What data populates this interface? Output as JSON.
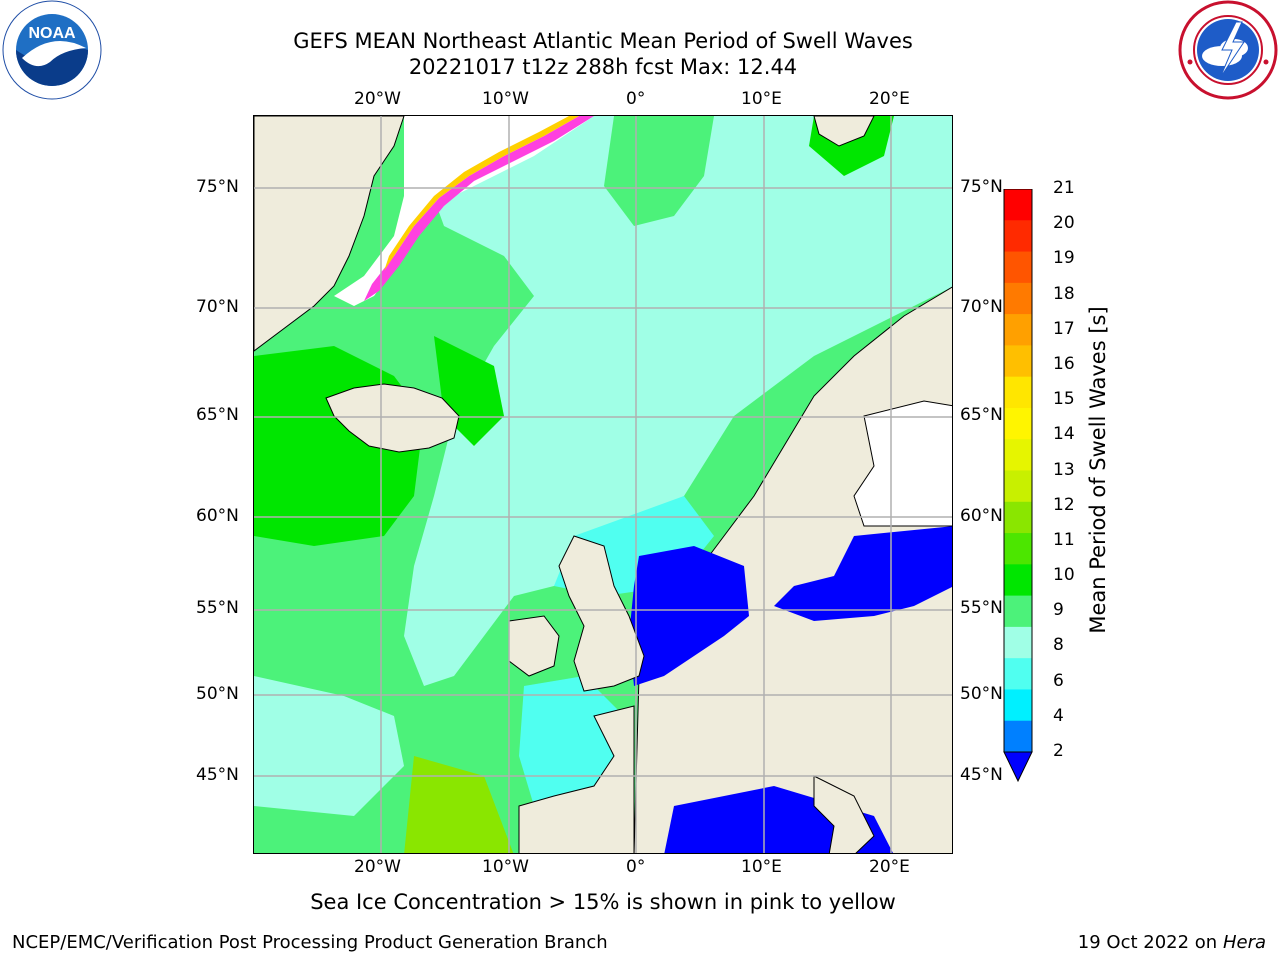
{
  "title": {
    "line1": "GEFS MEAN Northeast Atlantic Mean Period of Swell Waves",
    "line2": "20221017 t12z 288h fcst   Max: 12.44"
  },
  "logos": {
    "left": {
      "name": "NOAA",
      "text": "NOAA",
      "ring_text": "NATIONAL OCEANIC AND ATMOSPHERIC ADMINISTRATION · U.S. DEPARTMENT OF COMMERCE"
    },
    "right": {
      "name": "National Weather Service",
      "ring_text": "NATIONAL WEATHER SERVICE"
    }
  },
  "map": {
    "projection": "lat-lon",
    "lon_range": [
      "30°W",
      "25°E"
    ],
    "lat_range": [
      "41°N",
      "78°N"
    ],
    "lon_ticks": [
      "20°W",
      "10°W",
      "0°",
      "10°E",
      "20°E"
    ],
    "lat_ticks": [
      "75°N",
      "70°N",
      "65°N",
      "60°N",
      "55°N",
      "50°N",
      "45°N"
    ],
    "colors": {
      "land": "#efecdc",
      "coast": "#000000",
      "grid": "#b0b0b0",
      "missing": "#ffffff"
    }
  },
  "colorbar": {
    "title": "Mean Period of Swell Waves [s]",
    "labels": [
      "21",
      "20",
      "19",
      "18",
      "17",
      "16",
      "15",
      "14",
      "13",
      "12",
      "11",
      "10",
      "9",
      "8",
      "6",
      "4",
      "2"
    ],
    "colors_top_to_bottom": [
      "#ff0000",
      "#ff2a00",
      "#ff5500",
      "#ff7a00",
      "#ffa000",
      "#ffbf00",
      "#ffe600",
      "#fff500",
      "#e6f500",
      "#c8f000",
      "#8ae600",
      "#4ce600",
      "#00e600",
      "#4cf27a",
      "#a0ffe6",
      "#50fff0",
      "#00f0ff",
      "#0080ff"
    ],
    "under_color": "#0000ff"
  },
  "footnote": "Sea Ice Concentration > 15% is shown in pink to yellow",
  "credits": {
    "left": "NCEP/EMC/Verification Post Processing Product Generation Branch",
    "right_prefix": "19 Oct 2022 on ",
    "right_machine": "Hera"
  }
}
